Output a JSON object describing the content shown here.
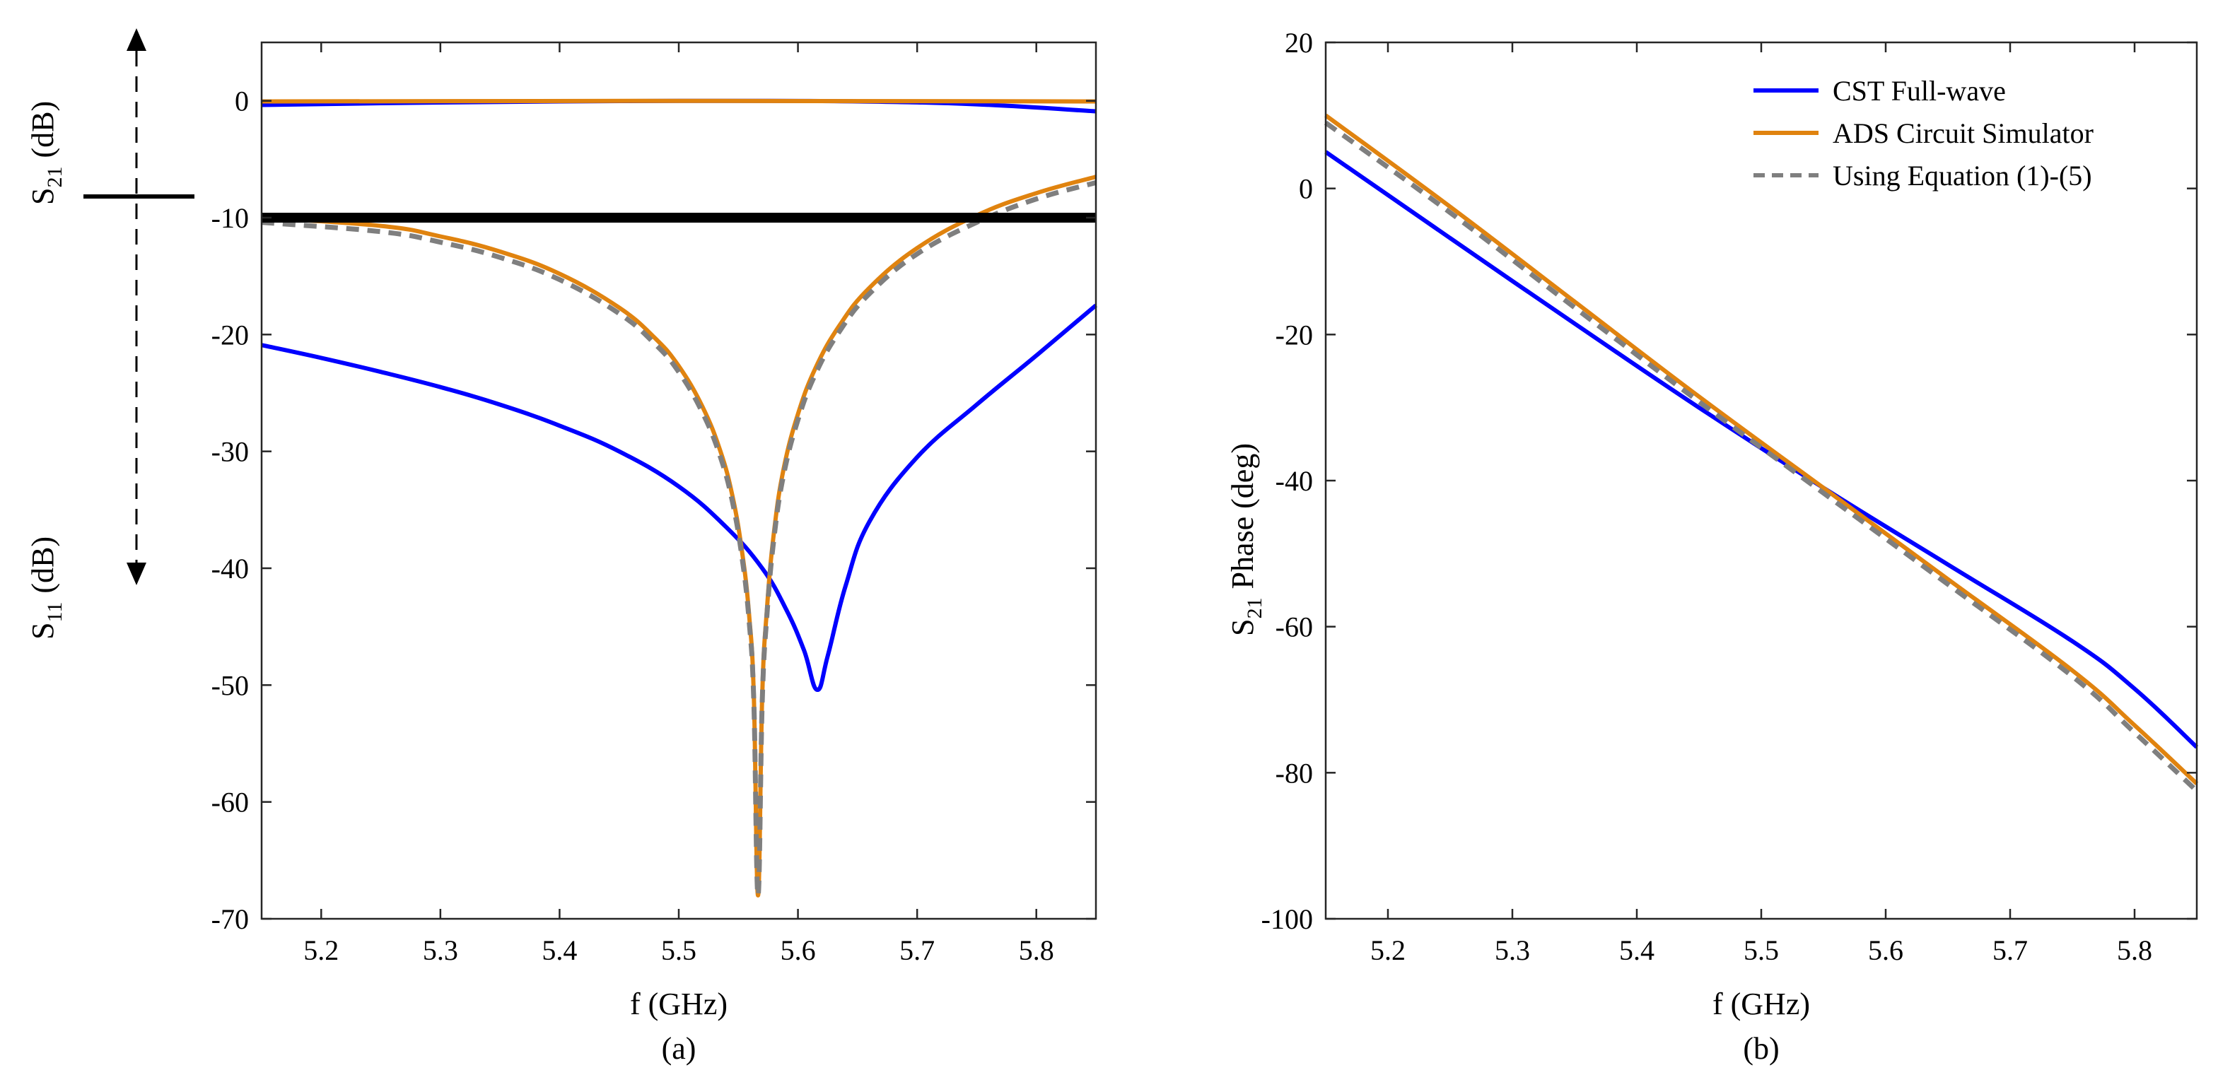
{
  "colors": {
    "cst": "#0000ff",
    "ads": "#e0830f",
    "eq": "#7f7f7f",
    "threshold": "#000000"
  },
  "chart_data": [
    {
      "id": "a",
      "type": "line",
      "caption": "(a)",
      "xlabel": "f (GHz)",
      "ylabel_top": {
        "base": "S",
        "sub": "21",
        "unit": "(dB)"
      },
      "ylabel_bottom": {
        "base": "S",
        "sub": "11",
        "unit": "(dB)"
      },
      "xlim": [
        5.15,
        5.85
      ],
      "ylim": [
        -70,
        5
      ],
      "xticks": [
        5.2,
        5.3,
        5.4,
        5.5,
        5.6,
        5.7,
        5.8
      ],
      "xtick_labels": [
        "5.2",
        "5.3",
        "5.4",
        "5.5",
        "5.6",
        "5.7",
        "5.8"
      ],
      "yticks": [
        0,
        -10,
        -20,
        -30,
        -40,
        -50,
        -60,
        -70
      ],
      "ytick_labels": [
        "0",
        "-10",
        "-20",
        "-30",
        "-40",
        "-50",
        "-60",
        "-70"
      ],
      "threshold": -10,
      "series": [
        {
          "name": "CST Full-wave S21",
          "color_key": "cst",
          "style": "solid",
          "x": [
            5.15,
            5.25,
            5.35,
            5.45,
            5.55,
            5.65,
            5.75,
            5.85
          ],
          "y": [
            -0.35,
            -0.2,
            -0.1,
            -0.02,
            0.0,
            -0.05,
            -0.3,
            -0.9
          ]
        },
        {
          "name": "CST Full-wave S11",
          "color_key": "cst",
          "style": "solid",
          "x": [
            5.15,
            5.2,
            5.25,
            5.3,
            5.35,
            5.4,
            5.45,
            5.5,
            5.54,
            5.57,
            5.59,
            5.605,
            5.616,
            5.625,
            5.64,
            5.66,
            5.7,
            5.75,
            5.8,
            5.85
          ],
          "y": [
            -20.9,
            -22.0,
            -23.2,
            -24.5,
            -26.0,
            -27.8,
            -30.0,
            -33.0,
            -36.5,
            -40.0,
            -43.5,
            -47.0,
            -50.4,
            -47.5,
            -41.5,
            -36.0,
            -30.5,
            -26.0,
            -21.8,
            -17.5
          ]
        },
        {
          "name": "ADS Circuit Simulator S21",
          "color_key": "ads",
          "style": "solid",
          "x": [
            5.15,
            5.5,
            5.85
          ],
          "y": [
            -0.05,
            0.0,
            -0.05
          ]
        },
        {
          "name": "ADS Circuit Simulator S11",
          "color_key": "ads",
          "style": "solid",
          "x": [
            5.15,
            5.25,
            5.3,
            5.35,
            5.4,
            5.45,
            5.48,
            5.5,
            5.52,
            5.535,
            5.545,
            5.553,
            5.559,
            5.563,
            5.5665,
            5.57,
            5.574,
            5.58,
            5.588,
            5.6,
            5.615,
            5.635,
            5.66,
            5.7,
            5.75,
            5.8,
            5.85
          ],
          "y": [
            -10.0,
            -10.7,
            -11.6,
            -12.9,
            -14.8,
            -17.7,
            -20.3,
            -22.7,
            -26.2,
            -30.0,
            -33.8,
            -38.5,
            -44.0,
            -51.0,
            -68.0,
            -51.0,
            -43.5,
            -36.8,
            -31.5,
            -26.8,
            -22.8,
            -19.2,
            -16.0,
            -12.6,
            -9.8,
            -7.9,
            -6.5
          ]
        },
        {
          "name": "Using Equation (1)-(5) S11",
          "color_key": "eq",
          "style": "dashed",
          "x": [
            5.15,
            5.25,
            5.3,
            5.35,
            5.4,
            5.45,
            5.48,
            5.5,
            5.52,
            5.535,
            5.545,
            5.553,
            5.559,
            5.563,
            5.5665,
            5.57,
            5.574,
            5.58,
            5.588,
            5.6,
            5.615,
            5.635,
            5.66,
            5.7,
            5.75,
            5.8,
            5.85
          ],
          "y": [
            -10.4,
            -11.2,
            -12.1,
            -13.4,
            -15.3,
            -18.2,
            -20.8,
            -23.2,
            -26.7,
            -30.5,
            -34.3,
            -39.0,
            -44.5,
            -51.5,
            -68.0,
            -51.5,
            -44.0,
            -37.3,
            -32.0,
            -27.3,
            -23.3,
            -19.7,
            -16.5,
            -13.1,
            -10.4,
            -8.4,
            -7.0
          ]
        }
      ]
    },
    {
      "id": "b",
      "type": "line",
      "caption": "(b)",
      "xlabel": "f (GHz)",
      "ylabel": {
        "base": "S",
        "sub": "21",
        "unit": "Phase (deg)"
      },
      "xlim": [
        5.15,
        5.85
      ],
      "ylim": [
        -100,
        20
      ],
      "xticks": [
        5.2,
        5.3,
        5.4,
        5.5,
        5.6,
        5.7,
        5.8
      ],
      "xtick_labels": [
        "5.2",
        "5.3",
        "5.4",
        "5.5",
        "5.6",
        "5.7",
        "5.8"
      ],
      "yticks": [
        20,
        0,
        -20,
        -40,
        -60,
        -80,
        -100
      ],
      "ytick_labels": [
        "20",
        "0",
        "-20",
        "-40",
        "-60",
        "-80",
        "-100"
      ],
      "legend": {
        "position": "top-right",
        "entries": [
          "CST Full-wave",
          "ADS Circuit Simulator",
          "Using Equation (1)-(5)"
        ]
      },
      "series": [
        {
          "name": "CST Full-wave",
          "color_key": "cst",
          "style": "solid",
          "x": [
            5.15,
            5.25,
            5.35,
            5.45,
            5.55,
            5.65,
            5.75,
            5.8,
            5.85
          ],
          "y": [
            5.0,
            -6.8,
            -18.5,
            -30.0,
            -41.0,
            -51.5,
            -62.0,
            -68.5,
            -76.5
          ]
        },
        {
          "name": "ADS Circuit Simulator",
          "color_key": "ads",
          "style": "solid",
          "x": [
            5.15,
            5.25,
            5.35,
            5.45,
            5.55,
            5.65,
            5.75,
            5.8,
            5.85
          ],
          "y": [
            10.0,
            -2.5,
            -15.5,
            -28.5,
            -41.0,
            -53.5,
            -66.0,
            -73.5,
            -81.5
          ]
        },
        {
          "name": "Using Equation (1)-(5)",
          "color_key": "eq",
          "style": "dashed",
          "x": [
            5.15,
            5.25,
            5.35,
            5.45,
            5.55,
            5.65,
            5.75,
            5.8,
            5.85
          ],
          "y": [
            9.0,
            -3.3,
            -16.3,
            -29.2,
            -41.7,
            -54.2,
            -66.8,
            -74.5,
            -82.5
          ]
        }
      ]
    }
  ]
}
